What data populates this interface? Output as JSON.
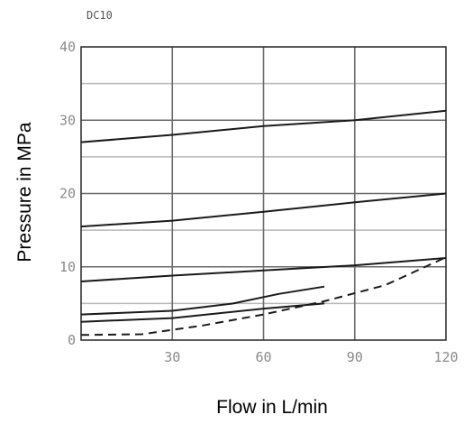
{
  "chart_data": {
    "type": "line",
    "title": "DC10",
    "xlabel": "Flow  in L/min",
    "ylabel": "Pressure  in MPa",
    "xlim": [
      0,
      120
    ],
    "ylim": [
      0,
      40
    ],
    "x_ticks": [
      "30",
      "60",
      "90",
      "120"
    ],
    "y_ticks": [
      "0",
      "10",
      "20",
      "30",
      "40"
    ],
    "x_origin_label": "",
    "grid": true,
    "series": [
      {
        "style": "solid",
        "points": [
          [
            0,
            27
          ],
          [
            30,
            28
          ],
          [
            60,
            29.2
          ],
          [
            90,
            30
          ],
          [
            120,
            31.3
          ]
        ]
      },
      {
        "style": "solid",
        "points": [
          [
            0,
            15.5
          ],
          [
            30,
            16.3
          ],
          [
            60,
            17.5
          ],
          [
            90,
            18.8
          ],
          [
            120,
            20
          ]
        ]
      },
      {
        "style": "solid",
        "points": [
          [
            0,
            8
          ],
          [
            30,
            8.8
          ],
          [
            60,
            9.5
          ],
          [
            90,
            10.2
          ],
          [
            120,
            11.2
          ]
        ]
      },
      {
        "style": "solid",
        "points": [
          [
            0,
            3.5
          ],
          [
            30,
            4
          ],
          [
            50,
            5
          ],
          [
            65,
            6.3
          ],
          [
            80,
            7.3
          ]
        ]
      },
      {
        "style": "solid",
        "points": [
          [
            0,
            2.5
          ],
          [
            30,
            3
          ],
          [
            60,
            4.3
          ],
          [
            80,
            5
          ]
        ]
      },
      {
        "style": "dashed",
        "points": [
          [
            0,
            0.7
          ],
          [
            20,
            0.8
          ],
          [
            40,
            2
          ],
          [
            60,
            3.5
          ],
          [
            80,
            5.3
          ],
          [
            100,
            7.5
          ],
          [
            120,
            11.3
          ]
        ]
      }
    ]
  }
}
